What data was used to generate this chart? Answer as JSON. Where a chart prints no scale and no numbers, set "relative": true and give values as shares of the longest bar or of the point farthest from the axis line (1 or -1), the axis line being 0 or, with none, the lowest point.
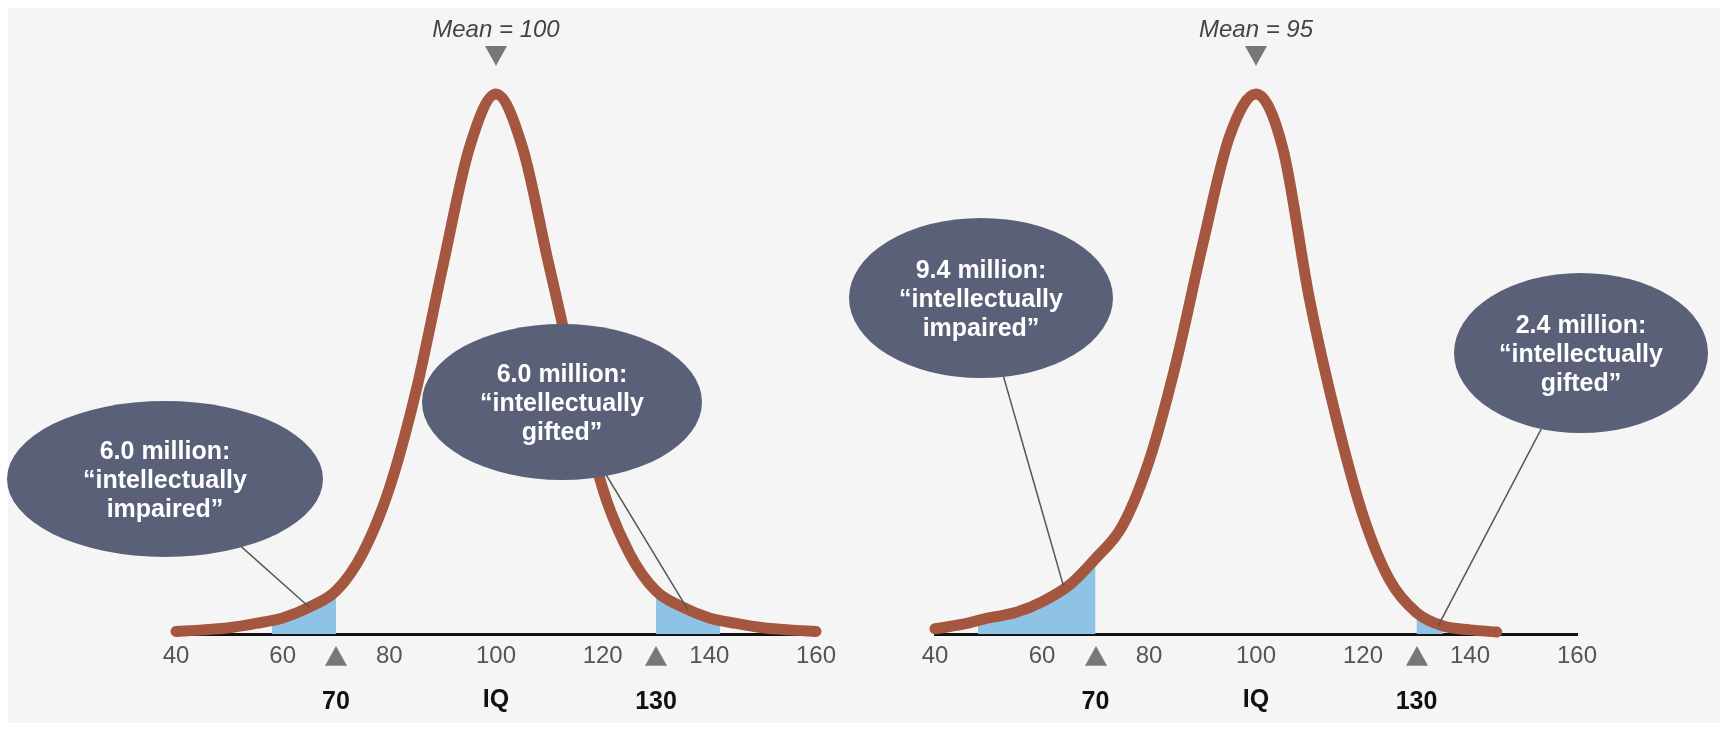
{
  "chart_data": [
    {
      "type": "line",
      "relative": true,
      "xlabel": "IQ",
      "xlim": [
        40,
        160
      ],
      "xticks": [
        40,
        60,
        80,
        100,
        120,
        140,
        160
      ],
      "grid": false,
      "legend": false,
      "series": [
        {
          "type": "line",
          "color": "#a5563f",
          "x": [
            40,
            45,
            50,
            55,
            60,
            65,
            70,
            75,
            80,
            85,
            90,
            95,
            100,
            105,
            110,
            115,
            120,
            125,
            130,
            135,
            140,
            145,
            150,
            155,
            160
          ],
          "values": [
            0.005,
            0.008,
            0.012,
            0.02,
            0.03,
            0.05,
            0.08,
            0.15,
            0.27,
            0.45,
            0.68,
            0.9,
            1,
            0.9,
            0.68,
            null,
            0.27,
            0.15,
            0.08,
            0.05,
            0.03,
            0.02,
            0.012,
            0.008,
            0.005
          ]
        },
        {
          "type": "area",
          "color": "#8fc3e6",
          "x": [
            58,
            60,
            65,
            70
          ],
          "values": [
            0.025,
            0.03,
            0.05,
            0.08
          ]
        },
        {
          "type": "area",
          "color": "#8fc3e6",
          "x": [
            130,
            135,
            140,
            142
          ],
          "values": [
            0.08,
            0.05,
            0.03,
            0.026
          ]
        }
      ],
      "annotations": [
        {
          "text": "Mean = 100",
          "x": 100,
          "y": 1
        },
        {
          "text": "70",
          "x": 70,
          "y": 0
        },
        {
          "text": "130",
          "x": 130,
          "y": 0
        },
        {
          "text": "6.0 million:\n“intellectually\nimpaired”",
          "x": 65,
          "y": 0.05
        },
        {
          "text": "6.0 million:\n“intellectually\ngifted”",
          "x": 136,
          "y": 0.045
        }
      ]
    },
    {
      "type": "line",
      "relative": true,
      "xlabel": "IQ",
      "xlim": [
        40,
        160
      ],
      "xticks": [
        40,
        60,
        80,
        100,
        120,
        140,
        160
      ],
      "grid": false,
      "legend": false,
      "series": [
        {
          "type": "line",
          "color": "#a5563f",
          "x": [
            40,
            45,
            50,
            55,
            60,
            65,
            70,
            75,
            80,
            85,
            90,
            95,
            100,
            105,
            110,
            115,
            120,
            125,
            130,
            135,
            140,
            145
          ],
          "values": [
            0.01,
            0.018,
            0.03,
            0.04,
            0.06,
            0.09,
            0.14,
            0.2,
            0.32,
            0.5,
            0.72,
            0.92,
            1,
            0.9,
            0.62,
            0.4,
            0.22,
            0.1,
            0.04,
            0.015,
            0.008,
            0.004
          ]
        },
        {
          "type": "area",
          "color": "#8fc3e6",
          "x": [
            48,
            50,
            55,
            60,
            65,
            70
          ],
          "values": [
            0.025,
            0.03,
            0.04,
            0.06,
            0.09,
            0.14
          ]
        },
        {
          "type": "area",
          "color": "#8fc3e6",
          "x": [
            130,
            135
          ],
          "values": [
            0.04,
            0.015
          ]
        }
      ],
      "annotations": [
        {
          "text": "Mean = 95",
          "x": 100,
          "y": 1
        },
        {
          "text": "70",
          "x": 70,
          "y": 0
        },
        {
          "text": "130",
          "x": 130,
          "y": 0
        },
        {
          "text": "9.4 million:\n“intellectually\nimpaired”",
          "x": 64,
          "y": 0.09
        },
        {
          "text": "2.4 million:\n“intellectually\ngifted”",
          "x": 134,
          "y": 0.015
        }
      ]
    }
  ]
}
